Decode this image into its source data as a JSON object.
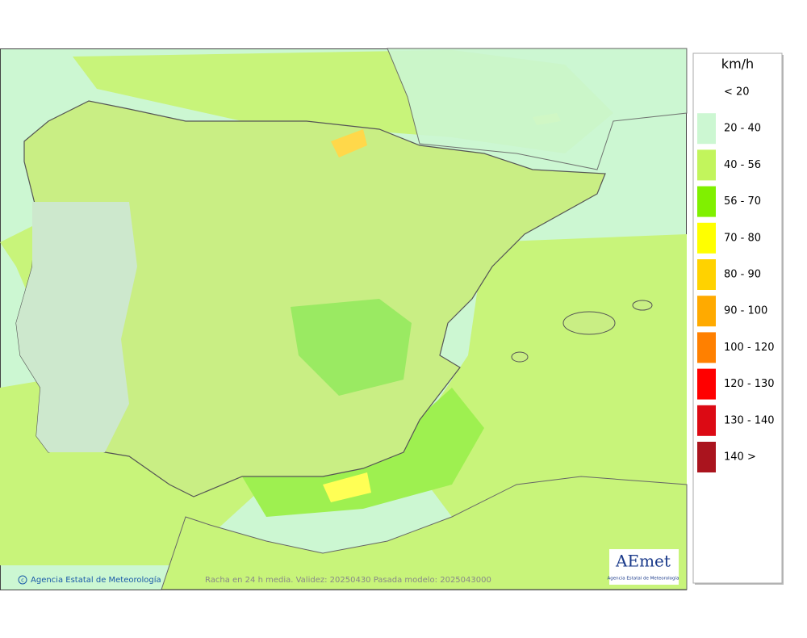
{
  "legend": {
    "title": "km/h",
    "items": [
      {
        "label": "< 20",
        "color": null
      },
      {
        "label": "20 - 40",
        "color": "#ccf7d2"
      },
      {
        "label": "40 - 56",
        "color": "#c2f55c"
      },
      {
        "label": "56 - 70",
        "color": "#80f000"
      },
      {
        "label": "70 - 80",
        "color": "#ffff00"
      },
      {
        "label": "80 - 90",
        "color": "#ffd200"
      },
      {
        "label": "90 - 100",
        "color": "#ffaa00"
      },
      {
        "label": "100 - 120",
        "color": "#ff8000"
      },
      {
        "label": "120 - 130",
        "color": "#ff0000"
      },
      {
        "label": "130 - 140",
        "color": "#dc0a14"
      },
      {
        "label": "140 >",
        "color": "#aa141e"
      }
    ]
  },
  "map": {
    "credit": "Agencia Estatal de Meteorología",
    "caption": "Racha en 24 h media. Validez: 20250430 Pasada modelo: 2025043000"
  },
  "logo": {
    "name": "AEmet",
    "subtitle": "Agencia Estatal de Meteorología"
  }
}
